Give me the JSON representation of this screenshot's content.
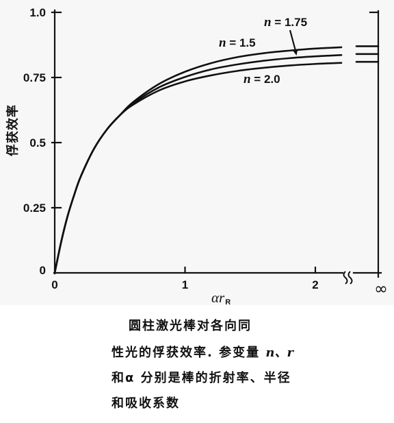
{
  "chart_data": {
    "type": "line",
    "ylabel": "俘获效率",
    "xlabel": "αr",
    "xlabel_subscript": "R",
    "xlim": [
      0,
      2.2
    ],
    "ylim": [
      0,
      1.0
    ],
    "yticks": [
      0,
      0.25,
      0.5,
      0.75,
      1.0
    ],
    "ytick_labels": [
      "0",
      "0.25",
      "0.5",
      "0.75",
      "1.0"
    ],
    "xticks": [
      0,
      1,
      2
    ],
    "xtick_labels": [
      "0",
      "1",
      "2"
    ],
    "x_axis_break": true,
    "x_infinity_label": "∞",
    "grid": false,
    "line_color": "#111111",
    "x": [
      0,
      0.05,
      0.1,
      0.15,
      0.2,
      0.3,
      0.4,
      0.5,
      0.6,
      0.8,
      1.0,
      1.2,
      1.4,
      1.6,
      1.8,
      2.0,
      2.2
    ],
    "series": [
      {
        "name": "n = 1.5",
        "values": [
          0,
          0.12,
          0.22,
          0.3,
          0.37,
          0.475,
          0.55,
          0.605,
          0.655,
          0.725,
          0.772,
          0.805,
          0.828,
          0.843,
          0.853,
          0.861,
          0.866
        ],
        "value_at_infinity": 0.87
      },
      {
        "name": "n = 1.75",
        "values": [
          0,
          0.12,
          0.22,
          0.3,
          0.37,
          0.475,
          0.55,
          0.605,
          0.65,
          0.712,
          0.752,
          0.781,
          0.8,
          0.814,
          0.824,
          0.831,
          0.836
        ],
        "value_at_infinity": 0.84
      },
      {
        "name": "n = 2.0",
        "values": [
          0,
          0.12,
          0.22,
          0.3,
          0.37,
          0.475,
          0.55,
          0.605,
          0.645,
          0.7,
          0.735,
          0.758,
          0.775,
          0.787,
          0.796,
          0.802,
          0.806
        ],
        "value_at_infinity": 0.81
      }
    ]
  },
  "caption": {
    "line1": "圆柱激光棒对各向同",
    "line2": "性光的俘获效率. 参变量",
    "line2_vars": "n、r",
    "line3": "和α 分别是棒的折射率、半径",
    "line4": "和吸收系数"
  }
}
